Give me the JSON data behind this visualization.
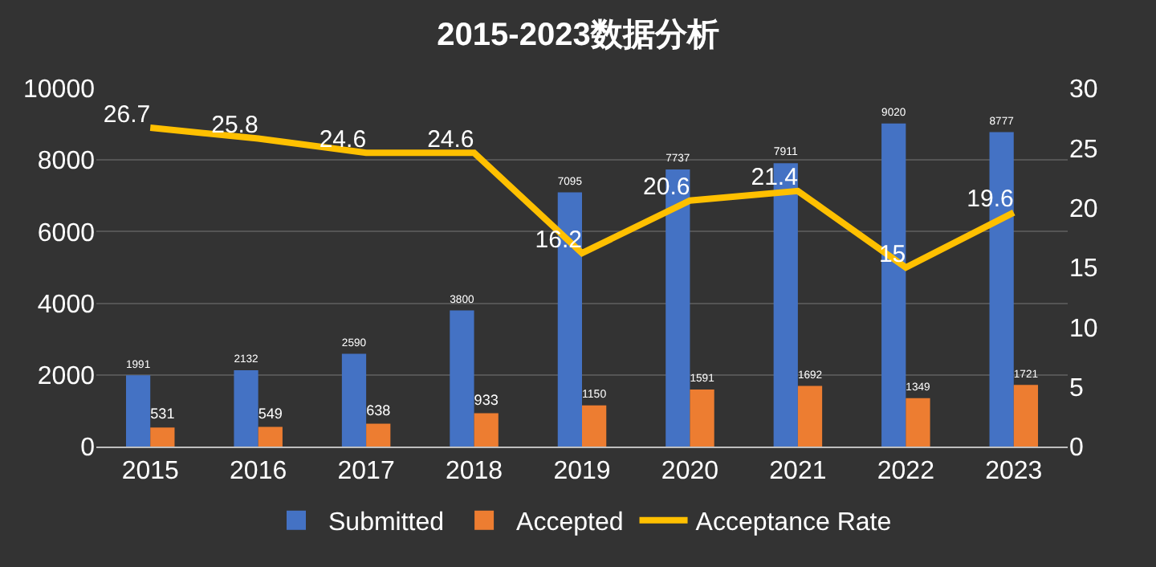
{
  "chart_data": {
    "type": "bar",
    "title": "2015-2023数据分析",
    "categories": [
      "2015",
      "2016",
      "2017",
      "2018",
      "2019",
      "2020",
      "2021",
      "2022",
      "2023"
    ],
    "series": [
      {
        "name": "Submitted",
        "color": "#4472c4",
        "values": [
          1991,
          2132,
          2590,
          3800,
          7095,
          7737,
          7911,
          9020,
          8777
        ]
      },
      {
        "name": "Accepted",
        "color": "#ed7d31",
        "values": [
          531,
          549,
          638,
          933,
          1150,
          1591,
          1692,
          1349,
          1721
        ]
      },
      {
        "name": "Acceptance Rate",
        "type": "line",
        "axis": "y2",
        "color": "#ffc000",
        "values": [
          26.7,
          25.8,
          24.6,
          24.6,
          16.2,
          20.6,
          21.4,
          15,
          19.6
        ]
      }
    ],
    "ylim": [
      0,
      10000
    ],
    "yticks": [
      0,
      2000,
      4000,
      6000,
      8000,
      10000
    ],
    "y2lim": [
      0,
      30
    ],
    "y2ticks": [
      0,
      5,
      10,
      15,
      20,
      25,
      30
    ],
    "grid": "y",
    "legend": "bottom",
    "data_labels": true,
    "marker": "none"
  }
}
